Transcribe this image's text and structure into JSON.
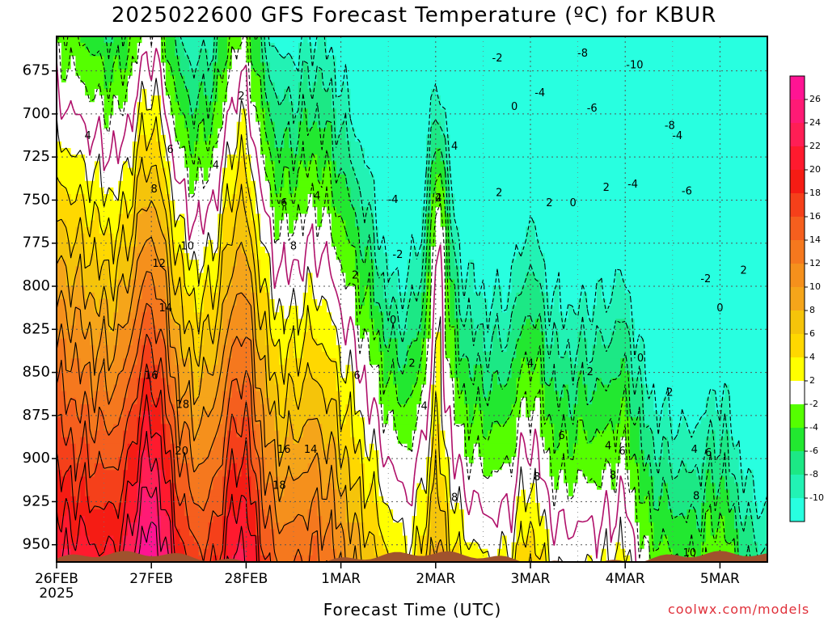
{
  "chart_data": {
    "type": "heatmap",
    "title": "2025022600 GFS Forecast Temperature (ºC) for KBUR",
    "xlabel": "Forecast Time (UTC)",
    "ylabel": "",
    "y_axis": "pressure (hPa), inverted",
    "y_ticks": [
      675,
      700,
      725,
      750,
      775,
      800,
      825,
      850,
      875,
      900,
      925,
      950
    ],
    "ylim": [
      960,
      655
    ],
    "x_ticks": [
      {
        "day": 0,
        "label": "26FEB",
        "sub": "2025"
      },
      {
        "day": 1,
        "label": "27FEB",
        "sub": ""
      },
      {
        "day": 2,
        "label": "28FEB",
        "sub": ""
      },
      {
        "day": 3,
        "label": "1MAR",
        "sub": ""
      },
      {
        "day": 4,
        "label": "2MAR",
        "sub": ""
      },
      {
        "day": 5,
        "label": "3MAR",
        "sub": ""
      },
      {
        "day": 6,
        "label": "4MAR",
        "sub": ""
      },
      {
        "day": 7,
        "label": "5MAR",
        "sub": ""
      }
    ],
    "xlim_days": [
      0,
      7.5
    ],
    "grid": true,
    "colorbar": {
      "ticks": [
        26,
        24,
        22,
        20,
        18,
        16,
        14,
        12,
        10,
        8,
        6,
        4,
        2,
        -2,
        -4,
        -6,
        -8,
        -10
      ],
      "bins": [
        {
          "range": [
            26,
            28
          ],
          "color": "#ff1493"
        },
        {
          "range": [
            24,
            26
          ],
          "color": "#ff1a75"
        },
        {
          "range": [
            22,
            24
          ],
          "color": "#ff1e55"
        },
        {
          "range": [
            20,
            22
          ],
          "color": "#ff1a2e"
        },
        {
          "range": [
            18,
            20
          ],
          "color": "#f51c14"
        },
        {
          "range": [
            16,
            18
          ],
          "color": "#f5401a"
        },
        {
          "range": [
            14,
            16
          ],
          "color": "#f55f1e"
        },
        {
          "range": [
            12,
            14
          ],
          "color": "#f5781e"
        },
        {
          "range": [
            10,
            12
          ],
          "color": "#f5901c"
        },
        {
          "range": [
            8,
            10
          ],
          "color": "#f5a51a"
        },
        {
          "range": [
            6,
            8
          ],
          "color": "#f5c40a"
        },
        {
          "range": [
            4,
            6
          ],
          "color": "#ffd800"
        },
        {
          "range": [
            2,
            4
          ],
          "color": "#ffff00"
        },
        {
          "range": [
            -2,
            2
          ],
          "color": "#ffffff"
        },
        {
          "range": [
            -4,
            -2
          ],
          "color": "#55ff00"
        },
        {
          "range": [
            -6,
            -4
          ],
          "color": "#22e830"
        },
        {
          "range": [
            -8,
            -6
          ],
          "color": "#1ce885"
        },
        {
          "range": [
            -10,
            -8
          ],
          "color": "#22f2b4"
        },
        {
          "range": [
            -12,
            -10
          ],
          "color": "#28ffe0"
        }
      ]
    },
    "isotherm_labels": [
      {
        "value": "2",
        "day": 1.95,
        "p": 690
      },
      {
        "value": "4",
        "day": 0.33,
        "p": 713
      },
      {
        "value": "4",
        "day": 1.68,
        "p": 730
      },
      {
        "value": "6",
        "day": 1.2,
        "p": 721
      },
      {
        "value": "6",
        "day": 2.4,
        "p": 752
      },
      {
        "value": "8",
        "day": 1.03,
        "p": 744
      },
      {
        "value": "8",
        "day": 2.5,
        "p": 777
      },
      {
        "value": "10",
        "day": 1.38,
        "p": 777
      },
      {
        "value": "12",
        "day": 1.08,
        "p": 787
      },
      {
        "value": "14",
        "day": 1.15,
        "p": 813
      },
      {
        "value": "16",
        "day": 1.0,
        "p": 852
      },
      {
        "value": "18",
        "day": 1.33,
        "p": 869
      },
      {
        "value": "20",
        "day": 1.32,
        "p": 896
      },
      {
        "value": "16",
        "day": 2.4,
        "p": 895
      },
      {
        "value": "14",
        "day": 2.68,
        "p": 895
      },
      {
        "value": "18",
        "day": 2.35,
        "p": 916
      },
      {
        "value": "4",
        "day": 2.75,
        "p": 748
      },
      {
        "value": "2",
        "day": 3.15,
        "p": 794
      },
      {
        "value": "6",
        "day": 3.17,
        "p": 852
      },
      {
        "value": "0",
        "day": 3.55,
        "p": 820
      },
      {
        "value": "-4",
        "day": 3.55,
        "p": 750
      },
      {
        "value": "-2",
        "day": 3.6,
        "p": 782
      },
      {
        "value": "2",
        "day": 3.75,
        "p": 845
      },
      {
        "value": "4",
        "day": 3.88,
        "p": 870
      },
      {
        "value": "2",
        "day": 4.03,
        "p": 749
      },
      {
        "value": "4",
        "day": 4.2,
        "p": 719
      },
      {
        "value": "4",
        "day": 4.03,
        "p": 749
      },
      {
        "value": "8",
        "day": 4.2,
        "p": 923
      },
      {
        "value": "-2",
        "day": 4.65,
        "p": 668
      },
      {
        "value": "0",
        "day": 4.83,
        "p": 696
      },
      {
        "value": "2",
        "day": 4.67,
        "p": 746
      },
      {
        "value": "-8",
        "day": 5.55,
        "p": 665
      },
      {
        "value": "-10",
        "day": 6.1,
        "p": 672
      },
      {
        "value": "-4",
        "day": 5.1,
        "p": 688
      },
      {
        "value": "-6",
        "day": 5.65,
        "p": 697
      },
      {
        "value": "-8",
        "day": 6.47,
        "p": 707
      },
      {
        "value": "-4",
        "day": 6.55,
        "p": 713
      },
      {
        "value": "2",
        "day": 5.2,
        "p": 752
      },
      {
        "value": "0",
        "day": 5.45,
        "p": 752
      },
      {
        "value": "4",
        "day": 5.0,
        "p": 845
      },
      {
        "value": "6",
        "day": 5.33,
        "p": 887
      },
      {
        "value": "8",
        "day": 5.07,
        "p": 911
      },
      {
        "value": "2",
        "day": 5.63,
        "p": 850
      },
      {
        "value": "2",
        "day": 5.8,
        "p": 743
      },
      {
        "value": "-4",
        "day": 6.08,
        "p": 741
      },
      {
        "value": "-6",
        "day": 6.65,
        "p": 745
      },
      {
        "value": "4",
        "day": 5.82,
        "p": 893
      },
      {
        "value": "6",
        "day": 5.97,
        "p": 896
      },
      {
        "value": "8",
        "day": 5.87,
        "p": 910
      },
      {
        "value": "0",
        "day": 6.16,
        "p": 842
      },
      {
        "value": "2",
        "day": 6.47,
        "p": 862
      },
      {
        "value": "4",
        "day": 6.73,
        "p": 895
      },
      {
        "value": "6",
        "day": 6.88,
        "p": 897
      },
      {
        "value": "8",
        "day": 6.75,
        "p": 922
      },
      {
        "value": "-2",
        "day": 6.85,
        "p": 796
      },
      {
        "value": "0",
        "day": 7.0,
        "p": 813
      },
      {
        "value": "2",
        "day": 7.25,
        "p": 791
      },
      {
        "value": "10",
        "day": 6.68,
        "p": 955
      }
    ],
    "surface_color": "#a0522d"
  },
  "credit": "coolwx.com/models"
}
